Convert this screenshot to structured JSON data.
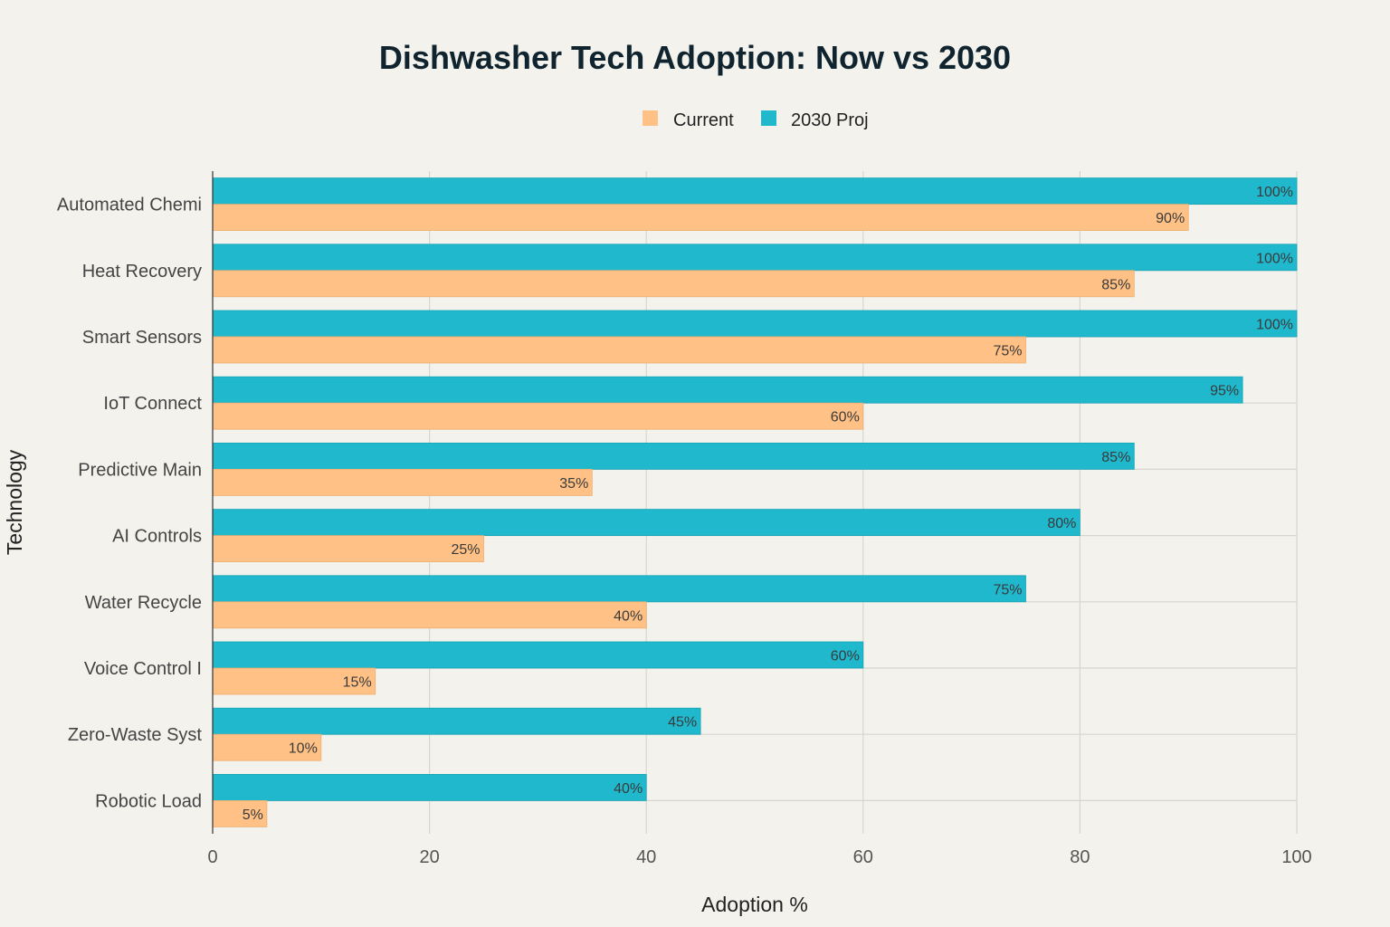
{
  "chart_data": {
    "type": "bar",
    "orientation": "horizontal",
    "title": "Dishwasher Tech Adoption: Now vs 2030",
    "xlabel": "Adoption %",
    "ylabel": "Technology",
    "xlim": [
      0,
      100
    ],
    "xticks": [
      0,
      20,
      40,
      60,
      80,
      100
    ],
    "xtick_labels": [
      "0",
      "20",
      "40",
      "60",
      "80",
      "100"
    ],
    "grid": true,
    "legend_position": "top-center",
    "categories": [
      "Automated Chemi",
      "Heat Recovery",
      "Smart Sensors",
      "IoT Connect",
      "Predictive Main",
      "AI Controls",
      "Water Recycle",
      "Voice Control I",
      "Zero-Waste Syst",
      "Robotic Load"
    ],
    "series": [
      {
        "name": "Current",
        "color": "#ffc185",
        "values": [
          90,
          85,
          75,
          60,
          35,
          25,
          40,
          15,
          10,
          5
        ],
        "labels": [
          "90%",
          "85%",
          "75%",
          "60%",
          "35%",
          "25%",
          "40%",
          "15%",
          "10%",
          "5%"
        ]
      },
      {
        "name": "2030 Proj",
        "color": "#1fb8cd",
        "values": [
          100,
          100,
          100,
          95,
          85,
          80,
          75,
          60,
          45,
          40
        ],
        "labels": [
          "100%",
          "100%",
          "100%",
          "95%",
          "85%",
          "80%",
          "75%",
          "60%",
          "45%",
          "40%"
        ]
      }
    ]
  }
}
